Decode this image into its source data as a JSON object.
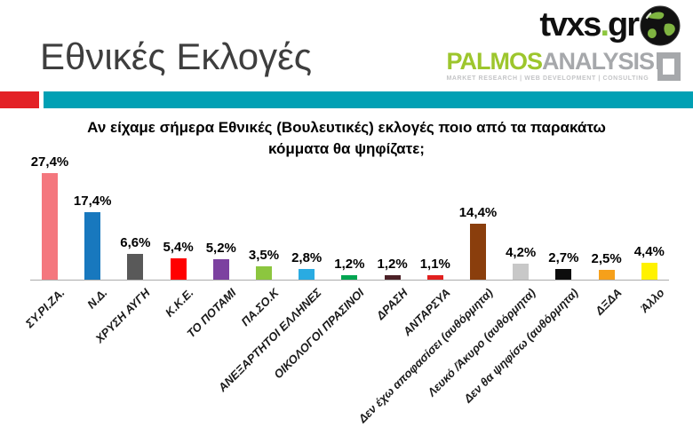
{
  "header": {
    "title": "Εθνικές Εκλογές",
    "title_color": "#3E3E3E",
    "tvxs_logo": {
      "text_main": "tvxs",
      "text_dot": ".",
      "text_tld": "gr",
      "dot_color": "#8DC63F"
    },
    "palmos_logo": {
      "word_green": "PALMOS",
      "word_gray": "ANALYSIS",
      "green_color": "#9DC62D",
      "gray_color": "#A6A8AB",
      "tagline": "MARKET RESEARCH | WEB DEVELOPMENT | CONSULTING"
    },
    "divider": {
      "red": "#E32126",
      "teal": "#00A0B4"
    }
  },
  "chart_data": {
    "type": "bar",
    "title": "Αν είχαμε σήμερα Εθνικές (Βουλευτικές) εκλογές ποιο από τα παρακάτω κόμματα θα ψηφίζατε;",
    "title_lines": [
      "Αν είχαμε σήμερα Εθνικές (Βουλευτικές) εκλογές ποιο από τα παρακάτω",
      "κόμματα θα ψηφίζατε;"
    ],
    "categories": [
      "ΣΥ.ΡΙ.ΖΑ.",
      "Ν.Δ.",
      "ΧΡΥΣΗ ΑΥΓΗ",
      "Κ.Κ.Ε.",
      "ΤΟ ΠΟΤΑΜΙ",
      "ΠΑ.ΣΟ.Κ",
      "ΑΝΕΞΑΡΤΗΤΟΙ ΕΛΛΗΝΕΣ",
      "ΟΙΚΟΛΟΓΟΙ ΠΡΑΣΙΝΟΙ",
      "ΔΡΑΣΗ",
      "ΑΝΤΑΡΣΥΑ",
      "Δεν έχω αποφασίσει (αυθόρμητα)",
      "Λευκό /Άκυρο (αυθόρμητα)",
      "Δεν θα ψηφίσω (αυθόρμητα)",
      "ΔΞΔΑ",
      "Άλλο"
    ],
    "values": [
      27.4,
      17.4,
      6.6,
      5.4,
      5.2,
      3.5,
      2.8,
      1.2,
      1.2,
      1.1,
      14.4,
      4.2,
      2.7,
      2.5,
      4.4
    ],
    "value_labels": [
      "27,4%",
      "17,4%",
      "6,6%",
      "5,4%",
      "5,2%",
      "3,5%",
      "2,8%",
      "1,2%",
      "1,2%",
      "1,1%",
      "14,4%",
      "4,2%",
      "2,7%",
      "2,5%",
      "4,4%"
    ],
    "bar_colors": [
      "#F4777E",
      "#1878BE",
      "#595959",
      "#FF0000",
      "#7C41A0",
      "#8CC63F",
      "#29ABE2",
      "#00A551",
      "#4C2127",
      "#E2201F",
      "#8A3E0C",
      "#C8C8C8",
      "#0D0D0D",
      "#F6A01A",
      "#FFF200"
    ],
    "xlabel": "",
    "ylabel": "",
    "ylim": [
      0,
      30
    ],
    "grid": false,
    "legend": "none"
  }
}
